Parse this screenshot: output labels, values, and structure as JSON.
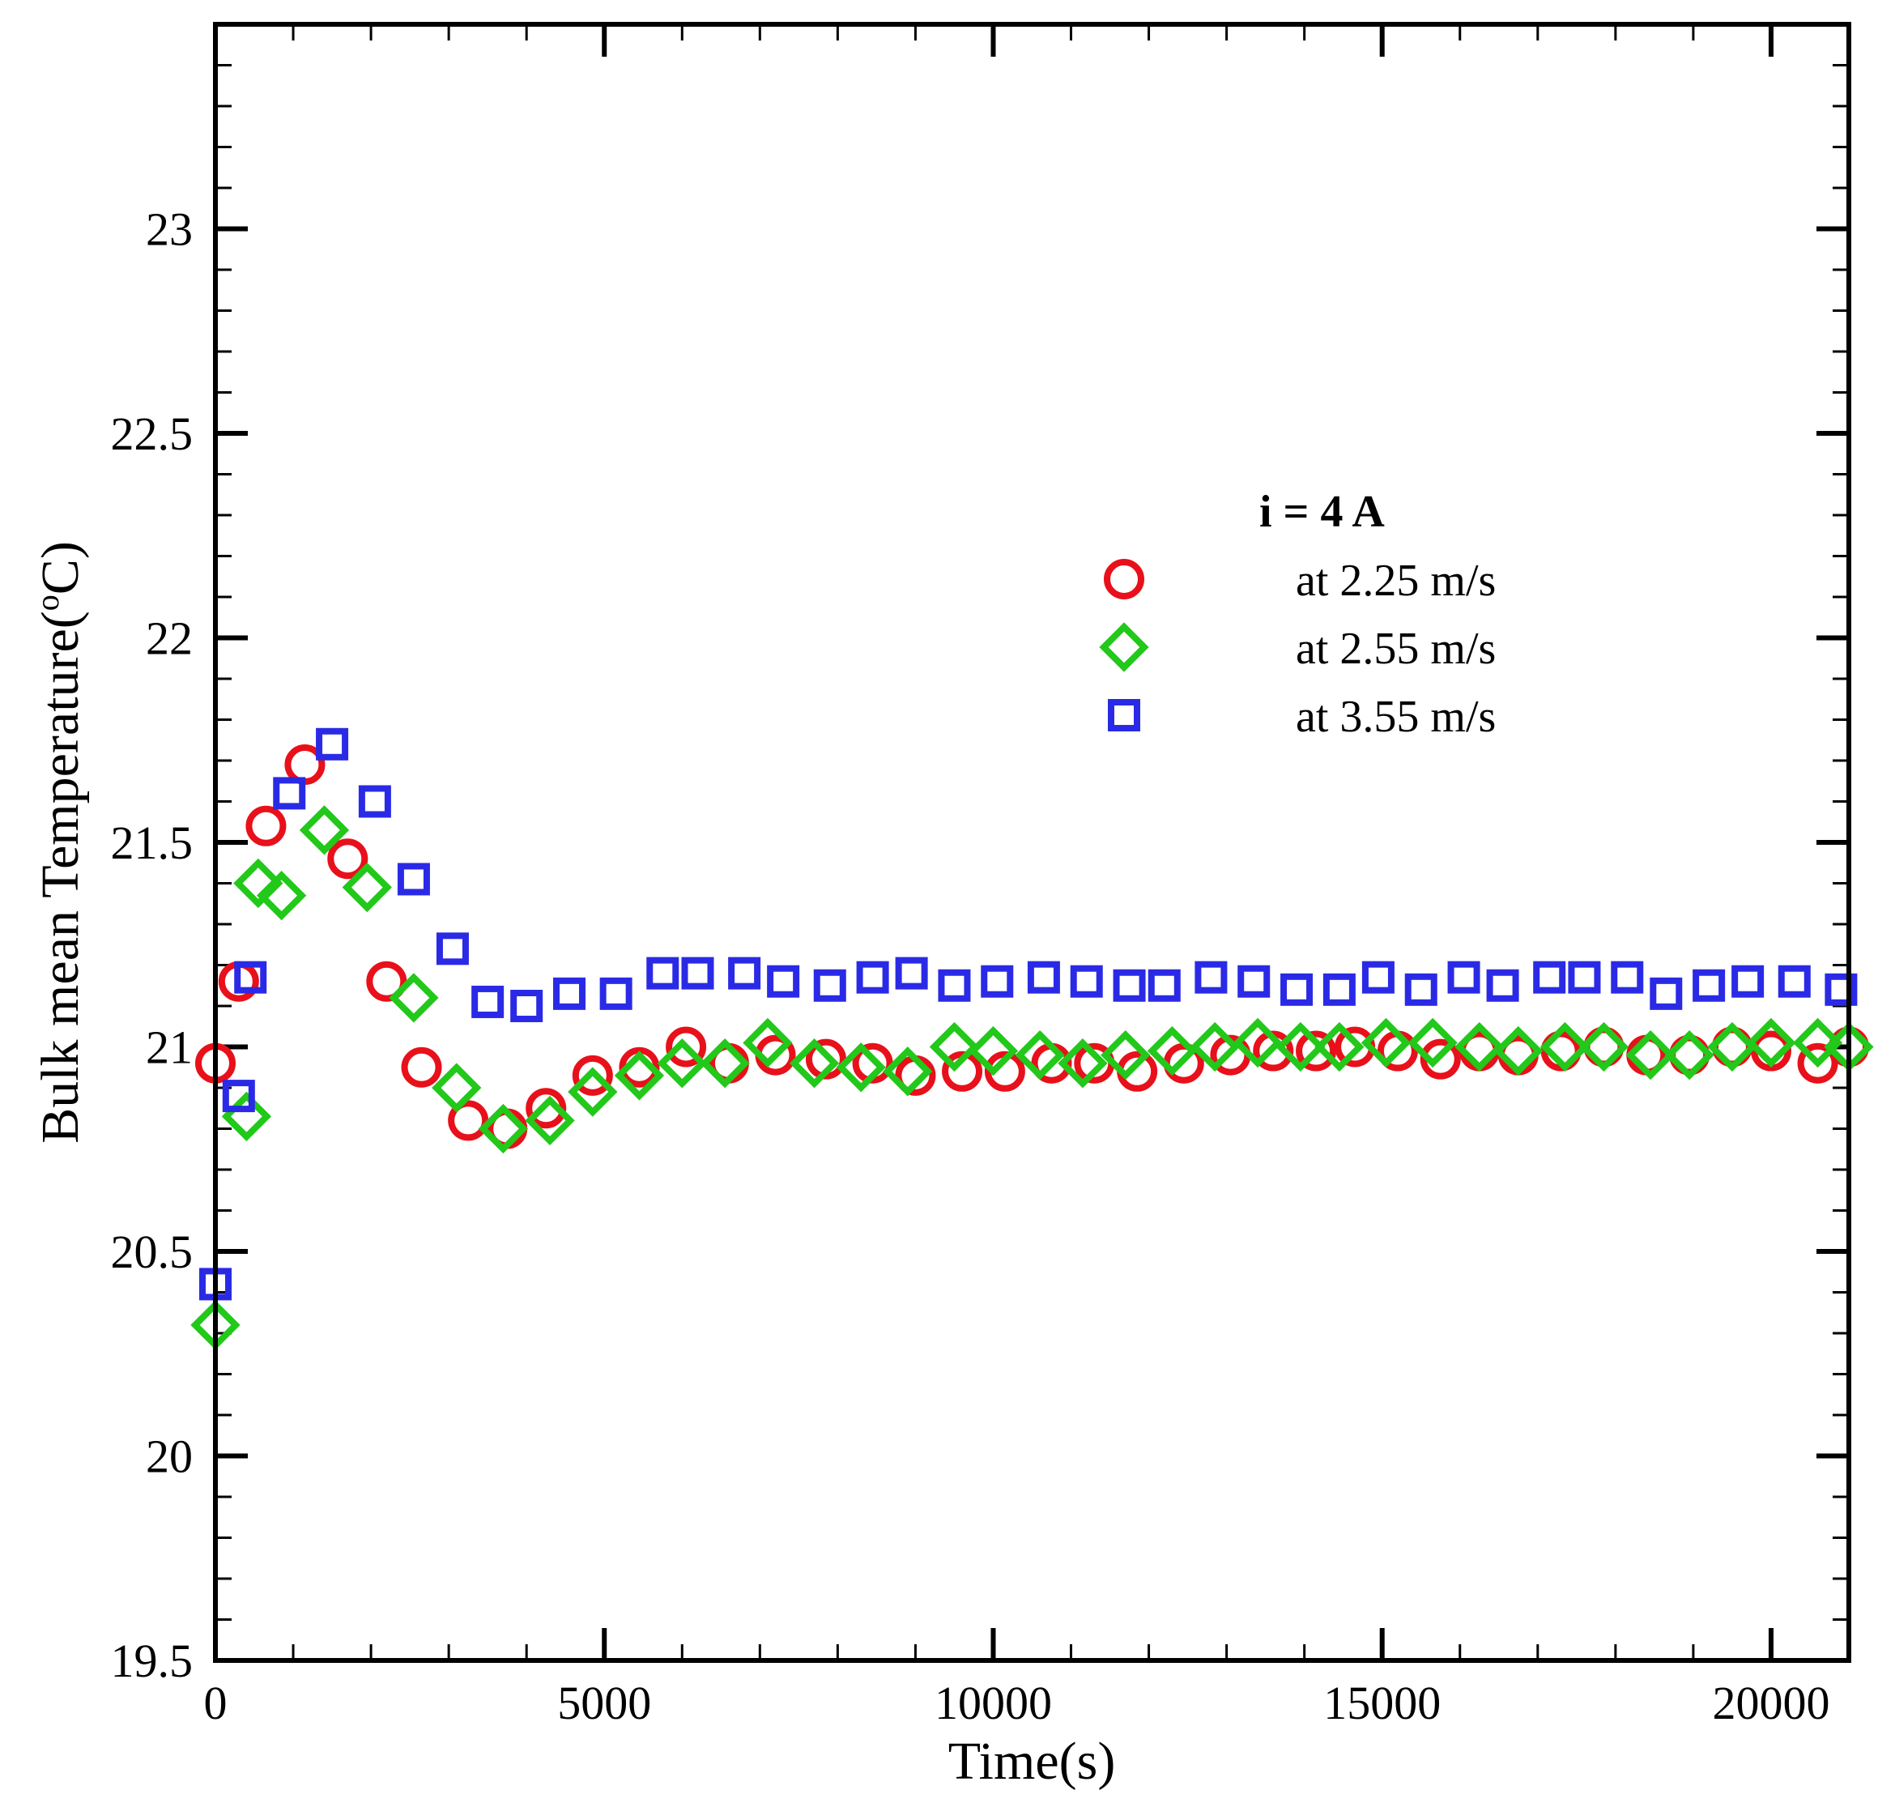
{
  "chart_data": {
    "type": "scatter",
    "xlabel": "Time(s)",
    "ylabel": "Bulk mean Temperature(°C)",
    "ylabel_parts": {
      "main": "Bulk mean Temperature(",
      "superscript": "o",
      "end": "C)"
    },
    "xlim": [
      0,
      21000
    ],
    "ylim": [
      19.5,
      23.5
    ],
    "x_ticks": [
      0,
      5000,
      10000,
      15000,
      20000
    ],
    "x_tick_labels": [
      "0",
      "5000",
      "10000",
      "15000",
      "20000"
    ],
    "y_ticks": [
      19.5,
      20,
      20.5,
      21,
      21.5,
      22,
      22.5,
      23
    ],
    "y_tick_labels": [
      "19.5",
      "20",
      "20.5",
      "21",
      "21.5",
      "22",
      "22.5",
      "23"
    ],
    "grid": false,
    "legend_position": "top-right",
    "legend_title": "i = 4 A",
    "colors": {
      "red": "#e8101a",
      "green": "#22c81a",
      "blue": "#2a2ae6"
    },
    "series": [
      {
        "name": "at 2.25 m/s",
        "marker": "circle",
        "color": "#e8101a",
        "x": [
          0,
          300,
          650,
          1150,
          1700,
          2200,
          2650,
          3250,
          3750,
          4250,
          4850,
          5450,
          6050,
          6600,
          7200,
          7850,
          8450,
          9000,
          9600,
          10150,
          10750,
          11300,
          11850,
          12450,
          13050,
          13600,
          14150,
          14650,
          15200,
          15750,
          16250,
          16750,
          17300,
          17850,
          18400,
          18950,
          19500,
          20000,
          20600,
          21000
        ],
        "y": [
          20.96,
          21.16,
          21.54,
          21.69,
          21.46,
          21.16,
          20.95,
          20.82,
          20.8,
          20.85,
          20.93,
          20.95,
          21.0,
          20.96,
          20.98,
          20.97,
          20.96,
          20.93,
          20.94,
          20.94,
          20.96,
          20.96,
          20.94,
          20.96,
          20.98,
          20.99,
          20.99,
          21.0,
          20.99,
          20.97,
          20.99,
          20.98,
          20.99,
          21.0,
          20.98,
          20.98,
          21.0,
          20.99,
          20.96,
          21.0
        ]
      },
      {
        "name": "at 2.55 m/s",
        "marker": "diamond",
        "color": "#22c81a",
        "x": [
          0,
          400,
          550,
          850,
          1400,
          1950,
          2550,
          3100,
          3700,
          4300,
          4850,
          5450,
          6000,
          6550,
          7100,
          7700,
          8300,
          8900,
          9500,
          10000,
          10600,
          11150,
          11700,
          12300,
          12850,
          13400,
          13950,
          14450,
          15050,
          15650,
          16250,
          16750,
          17350,
          17850,
          18450,
          18950,
          19500,
          20000,
          20600,
          21000
        ],
        "y": [
          20.32,
          20.83,
          21.4,
          21.37,
          21.53,
          21.39,
          21.12,
          20.9,
          20.8,
          20.82,
          20.89,
          20.93,
          20.96,
          20.96,
          21.01,
          20.96,
          20.95,
          20.94,
          21.0,
          20.99,
          20.98,
          20.96,
          20.98,
          20.99,
          21.0,
          21.01,
          21.0,
          21.0,
          21.01,
          21.01,
          21.0,
          20.99,
          21.0,
          21.0,
          20.98,
          20.98,
          21.0,
          21.01,
          21.01,
          21.0
        ]
      },
      {
        "name": "at 3.55 m/s",
        "marker": "square",
        "color": "#2a2ae6",
        "x": [
          0,
          300,
          450,
          950,
          1500,
          2050,
          2550,
          3050,
          3500,
          4000,
          4550,
          5150,
          5750,
          6200,
          6800,
          7300,
          7900,
          8450,
          8950,
          9500,
          10050,
          10650,
          11200,
          11750,
          12200,
          12800,
          13350,
          13900,
          14450,
          14950,
          15500,
          16050,
          16550,
          17150,
          17600,
          18150,
          18650,
          19200,
          19700,
          20300,
          20900
        ],
        "y": [
          20.42,
          20.88,
          21.17,
          21.62,
          21.74,
          21.6,
          21.41,
          21.24,
          21.11,
          21.1,
          21.13,
          21.13,
          21.18,
          21.18,
          21.18,
          21.16,
          21.15,
          21.17,
          21.18,
          21.15,
          21.16,
          21.17,
          21.16,
          21.15,
          21.15,
          21.17,
          21.16,
          21.14,
          21.14,
          21.17,
          21.14,
          21.17,
          21.15,
          21.17,
          21.17,
          21.17,
          21.13,
          21.15,
          21.16,
          21.16,
          21.14
        ]
      }
    ]
  }
}
